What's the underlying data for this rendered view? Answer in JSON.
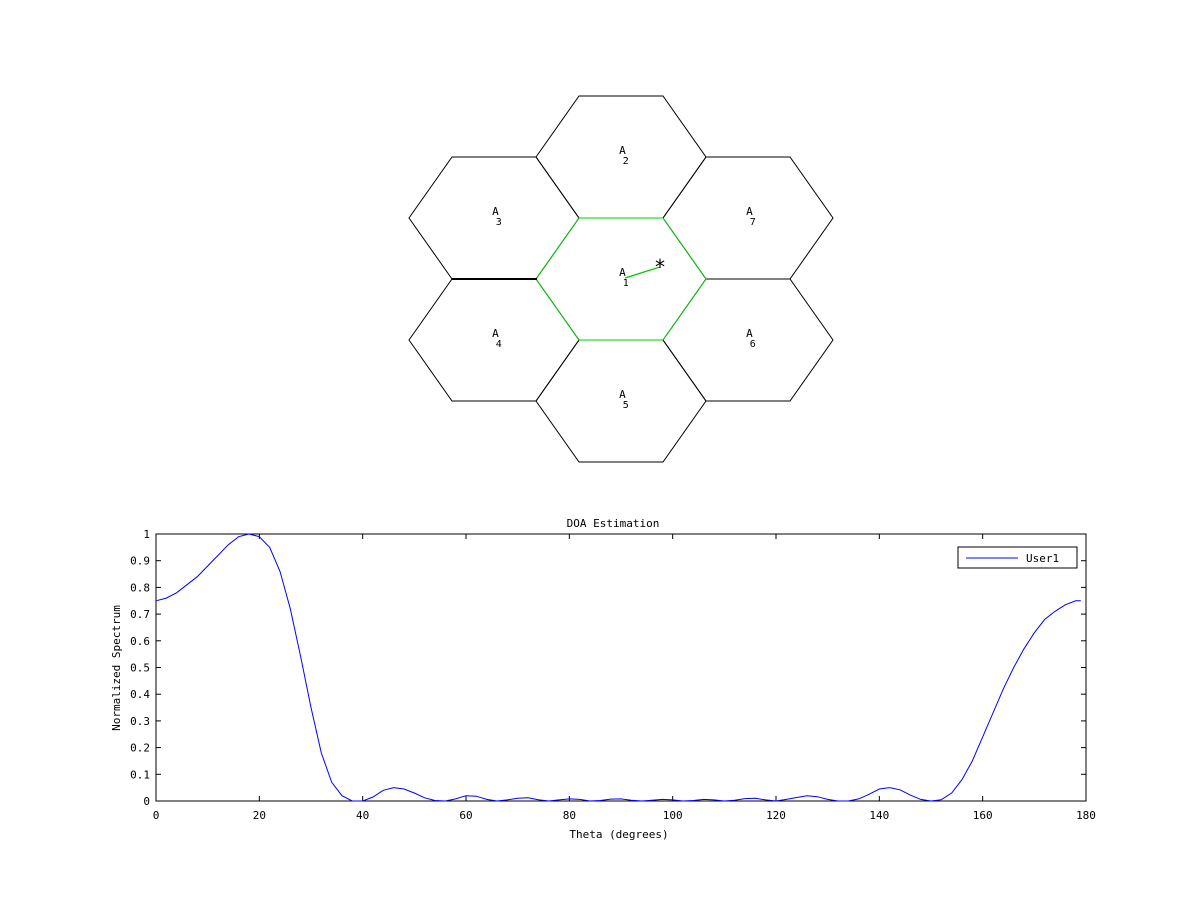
{
  "cells": [
    {
      "id": "1",
      "prefix": "A",
      "sub": "1",
      "highlighted": true
    },
    {
      "id": "2",
      "prefix": "A",
      "sub": "2",
      "highlighted": false
    },
    {
      "id": "3",
      "prefix": "A",
      "sub": "3",
      "highlighted": false
    },
    {
      "id": "4",
      "prefix": "A",
      "sub": "4",
      "highlighted": false
    },
    {
      "id": "5",
      "prefix": "A",
      "sub": "5",
      "highlighted": false
    },
    {
      "id": "6",
      "prefix": "A",
      "sub": "6",
      "highlighted": false
    },
    {
      "id": "7",
      "prefix": "A",
      "sub": "7",
      "highlighted": false
    }
  ],
  "user_marker": {
    "symbol": "*"
  },
  "colors": {
    "cell_edge": "#000000",
    "serving_cell_edge": "#00cc00",
    "series_line": "#0000ff",
    "axis": "#000000"
  },
  "chart_data": {
    "type": "line",
    "title": "DOA Estimation",
    "xlabel": "Theta (degrees)",
    "ylabel": "Normalized Spectrum",
    "xlim": [
      0,
      180
    ],
    "ylim": [
      0,
      1
    ],
    "xticks": [
      0,
      20,
      40,
      60,
      80,
      100,
      120,
      140,
      160,
      180
    ],
    "yticks": [
      0,
      0.1,
      0.2,
      0.3,
      0.4,
      0.5,
      0.6,
      0.7,
      0.8,
      0.9,
      1
    ],
    "ytick_labels": [
      "0",
      "0.1",
      "0.2",
      "0.3",
      "0.4",
      "0.5",
      "0.6",
      "0.7",
      "0.8",
      "0.9",
      "1"
    ],
    "grid": false,
    "legend_position": "top-right",
    "series": [
      {
        "name": "User1",
        "x": [
          0,
          2,
          4,
          6,
          8,
          10,
          12,
          14,
          16,
          18,
          20,
          22,
          24,
          26,
          28,
          30,
          32,
          34,
          36,
          38,
          40,
          42,
          44,
          46,
          48,
          50,
          52,
          54,
          56,
          58,
          60,
          62,
          64,
          66,
          68,
          70,
          72,
          74,
          76,
          78,
          80,
          82,
          84,
          86,
          88,
          90,
          92,
          94,
          96,
          98,
          100,
          102,
          104,
          106,
          108,
          110,
          112,
          114,
          116,
          118,
          120,
          122,
          124,
          126,
          128,
          130,
          132,
          134,
          136,
          138,
          140,
          142,
          144,
          146,
          148,
          150,
          152,
          154,
          156,
          158,
          160,
          162,
          164,
          166,
          168,
          170,
          172,
          174,
          176,
          178,
          179
        ],
        "y": [
          0.75,
          0.76,
          0.78,
          0.81,
          0.84,
          0.88,
          0.92,
          0.96,
          0.99,
          1.0,
          0.99,
          0.95,
          0.86,
          0.72,
          0.54,
          0.35,
          0.18,
          0.07,
          0.02,
          0.0,
          0.0,
          0.015,
          0.04,
          0.05,
          0.045,
          0.03,
          0.012,
          0.002,
          0.0,
          0.008,
          0.02,
          0.018,
          0.006,
          0.0,
          0.004,
          0.01,
          0.012,
          0.005,
          0.0,
          0.004,
          0.008,
          0.006,
          0.0,
          0.002,
          0.007,
          0.008,
          0.003,
          0.0,
          0.003,
          0.006,
          0.004,
          0.0,
          0.002,
          0.006,
          0.004,
          0.0,
          0.003,
          0.009,
          0.01,
          0.004,
          0.0,
          0.006,
          0.013,
          0.02,
          0.016,
          0.006,
          0.0,
          0.0,
          0.008,
          0.025,
          0.045,
          0.05,
          0.042,
          0.022,
          0.006,
          0.0,
          0.005,
          0.03,
          0.08,
          0.15,
          0.24,
          0.33,
          0.42,
          0.5,
          0.57,
          0.63,
          0.68,
          0.71,
          0.735,
          0.75,
          0.75
        ]
      }
    ]
  }
}
